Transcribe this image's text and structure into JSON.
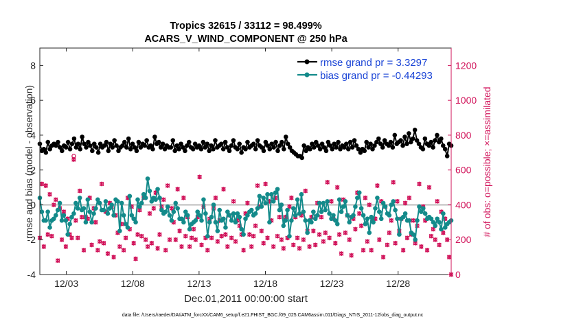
{
  "chart_data": {
    "type": "line",
    "title_line1": "Tropics 32615 / 33112 = 98.499%",
    "title_line2": "ACARS_V_WIND_COMPONENT @ 250 hPa",
    "xlabel": "Dec.01,2011 00:00:00 start",
    "ylabel_left": "rmse and bias (model - observation)",
    "ylabel_right": "# of obs: o=possible; ×=assimilated",
    "footer": "data file: /Users/raeder/DAI/ATM_forcXX/CAM6_setup/f.e21.FHIST_BGC.f09_025.CAM6assim.011/Diags_NTrS_2011-12/obs_diag_output.nc",
    "xlim": [
      1,
      32
    ],
    "x_ticks": [
      {
        "x": 3,
        "label": "12/03"
      },
      {
        "x": 8,
        "label": "12/08"
      },
      {
        "x": 13,
        "label": "12/13"
      },
      {
        "x": 18,
        "label": "12/18"
      },
      {
        "x": 23,
        "label": "12/23"
      },
      {
        "x": 28,
        "label": "12/28"
      }
    ],
    "ylim_left": [
      -4,
      9
    ],
    "yticks_left": [
      "-4",
      "-2",
      "0",
      "2",
      "4",
      "6",
      "8"
    ],
    "ylim_right": [
      0,
      1300
    ],
    "yticks_right": [
      "0",
      "200",
      "400",
      "600",
      "800",
      "1000",
      "1200"
    ],
    "zero_line": 0,
    "legend": {
      "position": "top-right",
      "rmse_label": "rmse grand pr = 3.3297",
      "bias_label": "bias grand pr = -0.44293"
    },
    "colors": {
      "rmse": "#000000",
      "bias": "#138a8a",
      "obs": "#d1135a",
      "legend_text": "#1a44d6",
      "zero_line": "#bdbdbd"
    },
    "series": [
      {
        "name": "rmse",
        "values": [
          3.5,
          3.1,
          3.2,
          3.0,
          3.6,
          3.2,
          3.4,
          3.5,
          3.4,
          3.6,
          3.3,
          3.1,
          3.4,
          3.3,
          3.6,
          3.2,
          3.5,
          3.8,
          3.3,
          3.5,
          3.2,
          3.9,
          3.5,
          3.3,
          3.6,
          3.4,
          3.1,
          3.5,
          3.3,
          3.0,
          3.5,
          3.3,
          3.4,
          3.6,
          3.1,
          3.5,
          3.3,
          3.7,
          3.4,
          3.1,
          3.3,
          3.4,
          3.6,
          3.3,
          3.8,
          3.2,
          3.5,
          3.3,
          3.1,
          3.6,
          3.3,
          3.5,
          3.4,
          3.7,
          3.3,
          3.4,
          3.2,
          3.9,
          3.5,
          3.6,
          3.3,
          3.5,
          3.2,
          3.4,
          3.3,
          3.3,
          3.7,
          3.1,
          3.4,
          3.2,
          3.5,
          3.3,
          3.1,
          3.4,
          3.6,
          3.3,
          3.2,
          3.5,
          3.3,
          3.4,
          3.2,
          3.6,
          3.3,
          3.5,
          3.1,
          3.4,
          3.2,
          3.7,
          3.3,
          3.4,
          3.5,
          3.2,
          3.6,
          3.3,
          3.1,
          3.4,
          3.7,
          3.3,
          3.2,
          3.5,
          3.0,
          3.3,
          3.2,
          3.6,
          3.3,
          3.4,
          3.5,
          3.2,
          3.7,
          3.4,
          3.3,
          3.1,
          3.6,
          3.4,
          3.2,
          3.5,
          3.3,
          3.6,
          3.1,
          3.4,
          3.6,
          3.2,
          3.9,
          3.5,
          3.3,
          3.1,
          3.0,
          2.9,
          2.8,
          2.8,
          2.7,
          3.4,
          3.1,
          3.3,
          3.2,
          3.5,
          3.3,
          3.6,
          3.4,
          3.2,
          3.5,
          3.3,
          3.1,
          3.6,
          3.4,
          3.2,
          3.5,
          3.3,
          3.6,
          3.2,
          3.4,
          3.3,
          3.5,
          3.2,
          3.6,
          3.3,
          3.7,
          3.4,
          3.2,
          3.0,
          3.2,
          3.1,
          3.6,
          3.3,
          3.5,
          3.2,
          3.4,
          3.6,
          3.8,
          3.5,
          3.3,
          3.7,
          3.5,
          3.4,
          3.6,
          3.3,
          4.0,
          3.5,
          3.6,
          3.7,
          3.4,
          3.9,
          3.5,
          4.1,
          3.6,
          3.8,
          4.3,
          3.7,
          3.5,
          3.3,
          3.2,
          3.8,
          3.5,
          3.4,
          3.6,
          3.3,
          3.7,
          4.0,
          3.6,
          3.8,
          3.4,
          3.2,
          2.8,
          3.5,
          3.4
        ]
      },
      {
        "name": "bias",
        "values": [
          0.4,
          -0.4,
          -0.9,
          -0.9,
          -0.4,
          -1.3,
          -0.9,
          -0.8,
          -0.6,
          -0.3,
          0.1,
          -0.9,
          -0.6,
          -0.9,
          -1.7,
          -1.1,
          -0.7,
          -0.5,
          0.1,
          -0.2,
          0.4,
          -0.3,
          -0.2,
          -1.0,
          0.3,
          -0.4,
          -1.0,
          -0.5,
          -0.2,
          0.3,
          0.1,
          -0.3,
          -0.3,
          0.2,
          -0.5,
          -0.2,
          0.0,
          -0.6,
          0.3,
          0.2,
          -1.5,
          0.1,
          -0.6,
          -1.1,
          -1.3,
          0.5,
          -0.6,
          -0.8,
          -1.0,
          0.3,
          -0.1,
          0.1,
          0.6,
          0.4,
          1.5,
          0.8,
          0.2,
          0.4,
          0.3,
          0.9,
          0.4,
          -0.3,
          -0.5,
          -0.4,
          -0.1,
          -0.6,
          -0.9,
          -0.4,
          0.1,
          -0.2,
          -0.8,
          -0.8,
          -1.0,
          -0.4,
          -0.6,
          -1.4,
          -1.1,
          -1.0,
          -0.9,
          -0.4,
          -0.6,
          -0.9,
          0.3,
          -0.5,
          -1.8,
          -1.0,
          -0.7,
          0.0,
          -1.0,
          -1.5,
          -0.3,
          -0.9,
          -0.8,
          -1.3,
          -0.4,
          -0.6,
          -0.9,
          -0.5,
          -1.0,
          -0.5,
          -0.7,
          -1.4,
          -1.7,
          -0.8,
          -0.6,
          -0.4,
          -0.3,
          -0.6,
          -0.5,
          -0.2,
          0.5,
          -0.1,
          0.4,
          0.1,
          0.6,
          -1.0,
          0.6,
          0.2,
          0.7,
          0.9,
          -0.3,
          0.0,
          -1.2,
          -0.9,
          -0.3,
          -1.8,
          -0.9,
          -0.2,
          -0.6,
          0.3,
          -0.5,
          0.6,
          -0.4,
          -0.9,
          -1.6,
          -0.9,
          -1.0,
          -0.4,
          -0.8,
          -0.6,
          0.1,
          -0.4,
          0.1,
          -0.3,
          0.2,
          -0.5,
          -0.8,
          -0.6,
          -0.9,
          -1.1,
          0.3,
          -0.4,
          -0.1,
          0.2,
          -0.6,
          -1.0,
          -0.7,
          -0.6,
          -0.1,
          0.4,
          0.7,
          -0.2,
          -0.6,
          -1.1,
          -0.8,
          -1.6,
          -0.7,
          -1.0,
          -0.2,
          0.4,
          -0.4,
          -0.8,
          0.1,
          -0.1,
          -0.5,
          -0.6,
          0.0,
          0.2,
          -0.3,
          -0.8,
          -1.7,
          -0.8,
          -0.7,
          -0.5,
          -0.9,
          -0.9,
          -1.6,
          -1.7,
          -2.0,
          -0.9,
          -0.1,
          -0.4,
          -0.2,
          -0.5,
          -0.8,
          -0.7,
          -0.8,
          -1.0,
          -1.2,
          -0.8,
          -1.0,
          -1.4,
          -0.5,
          -1.3,
          -1.1,
          -1.0,
          -0.9
        ]
      },
      {
        "name": "obs_assimilated",
        "values": [
          210,
          520,
          160,
          510,
          230,
          460,
          220,
          400,
          430,
          80,
          380,
          200,
          360,
          160,
          320,
          230,
          210,
          660,
          310,
          210,
          480,
          330,
          140,
          330,
          320,
          440,
          170,
          380,
          300,
          140,
          190,
          520,
          180,
          360,
          120,
          410,
          390,
          100,
          340,
          240,
          160,
          290,
          140,
          210,
          440,
          260,
          390,
          180,
          90,
          230,
          370,
          220,
          440,
          200,
          160,
          350,
          180,
          380,
          470,
          150,
          230,
          390,
          430,
          140,
          510,
          200,
          380,
          300,
          200,
          490,
          250,
          160,
          440,
          220,
          330,
          160,
          210,
          260,
          200,
          330,
          560,
          170,
          390,
          210,
          140,
          320,
          210,
          380,
          440,
          190,
          310,
          220,
          490,
          230,
          160,
          340,
          210,
          420,
          190,
          310,
          280,
          230,
          140,
          350,
          410,
          230,
          160,
          220,
          280,
          510,
          390,
          250,
          180,
          520,
          210,
          420,
          310,
          160,
          440,
          220,
          330,
          200,
          150,
          330,
          210,
          390,
          440,
          170,
          330,
          210,
          150,
          340,
          200,
          480,
          250,
          160,
          330,
          250,
          170,
          410,
          230,
          330,
          190,
          240,
          530,
          210,
          420,
          320,
          180,
          500,
          230,
          120,
          430,
          240,
          340,
          200,
          110,
          320,
          260,
          470,
          350,
          280,
          140,
          440,
          190,
          400,
          140,
          310,
          320,
          510,
          200,
          420,
          100,
          390,
          170,
          240,
          310,
          530,
          180,
          420,
          250,
          320,
          140,
          410,
          210,
          440,
          230,
          310,
          180,
          280,
          520,
          160,
          390,
          310,
          140,
          500,
          220,
          260,
          200,
          420,
          170,
          360,
          240,
          320,
          200,
          100,
          0
        ]
      },
      {
        "name": "obs_possible",
        "values": [
          210,
          520,
          160,
          510,
          230,
          460,
          220,
          400,
          430,
          80,
          380,
          200,
          360,
          160,
          320,
          230,
          210,
          680,
          310,
          210,
          480,
          330,
          140,
          330,
          320,
          440,
          170,
          380,
          300,
          140,
          190,
          520,
          180,
          360,
          120,
          410,
          390,
          100,
          340,
          240,
          160,
          290,
          140,
          210,
          440,
          260,
          390,
          180,
          90,
          230,
          370,
          220,
          440,
          200,
          160,
          350,
          180,
          380,
          470,
          150,
          230,
          390,
          430,
          140,
          510,
          200,
          380,
          300,
          200,
          490,
          250,
          160,
          440,
          220,
          330,
          160,
          210,
          260,
          200,
          330,
          560,
          170,
          390,
          210,
          140,
          320,
          210,
          380,
          440,
          190,
          310,
          220,
          490,
          230,
          160,
          340,
          210,
          420,
          190,
          310,
          280,
          230,
          140,
          350,
          410,
          230,
          160,
          220,
          280,
          510,
          390,
          250,
          180,
          520,
          210,
          420,
          310,
          160,
          440,
          220,
          330,
          200,
          150,
          330,
          210,
          390,
          440,
          170,
          330,
          210,
          150,
          340,
          200,
          480,
          250,
          160,
          330,
          250,
          170,
          410,
          230,
          330,
          190,
          240,
          530,
          210,
          420,
          320,
          180,
          500,
          230,
          120,
          430,
          240,
          340,
          200,
          110,
          320,
          260,
          470,
          350,
          280,
          140,
          440,
          190,
          400,
          140,
          310,
          320,
          510,
          200,
          420,
          100,
          390,
          170,
          240,
          310,
          530,
          180,
          420,
          250,
          320,
          140,
          410,
          210,
          440,
          230,
          310,
          180,
          280,
          520,
          160,
          390,
          310,
          140,
          500,
          220,
          260,
          200,
          420,
          170,
          360,
          240,
          320,
          200,
          100,
          0
        ]
      }
    ]
  }
}
